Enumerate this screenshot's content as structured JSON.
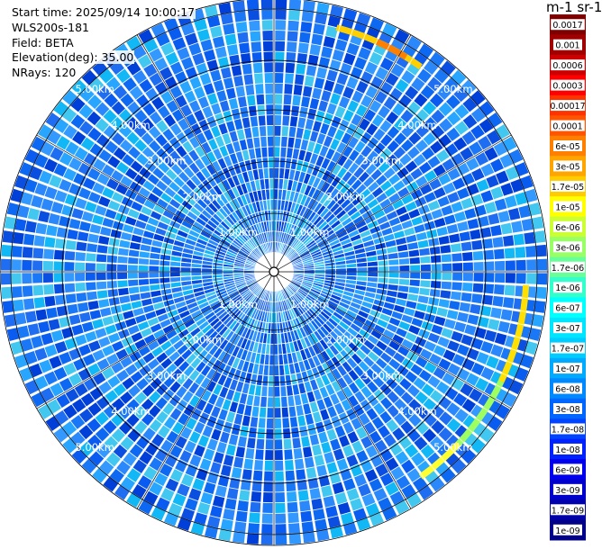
{
  "info": {
    "start_time": "Start time: 2025/09/14 10:00:17",
    "instrument": "WLS200s-181",
    "field": "Field: BETA",
    "elevation": "Elevation(deg): 35.00",
    "nrays": "NRays: 120"
  },
  "ring_labels": [
    "1.00km",
    "2.00km",
    "3.00km",
    "4.00km",
    "5.00km"
  ],
  "colorbar": {
    "title": "m-1 sr-1",
    "labels": [
      "0.0017",
      "0.001",
      "0.0006",
      "0.0003",
      "0.00017",
      "0.0001",
      "6e-05",
      "3e-05",
      "1.7e-05",
      "1e-05",
      "6e-06",
      "3e-06",
      "1.7e-06",
      "1e-06",
      "6e-07",
      "3e-07",
      "1.7e-07",
      "1e-07",
      "6e-08",
      "3e-08",
      "1.7e-08",
      "1e-08",
      "6e-09",
      "3e-09",
      "1.7e-09",
      "1e-09"
    ],
    "colors": [
      "#800000",
      "#a00000",
      "#cc0000",
      "#ff0000",
      "#ff3300",
      "#ff5500",
      "#ff7f00",
      "#ffa500",
      "#ffcc00",
      "#ffff00",
      "#ccff33",
      "#99ff66",
      "#66ff99",
      "#33ffcc",
      "#00ffff",
      "#00e5ff",
      "#00ccff",
      "#00aaff",
      "#0088ff",
      "#0066ff",
      "#0044ff",
      "#0022ff",
      "#0000ee",
      "#0000cc",
      "#0000aa",
      "#000088"
    ]
  }
}
